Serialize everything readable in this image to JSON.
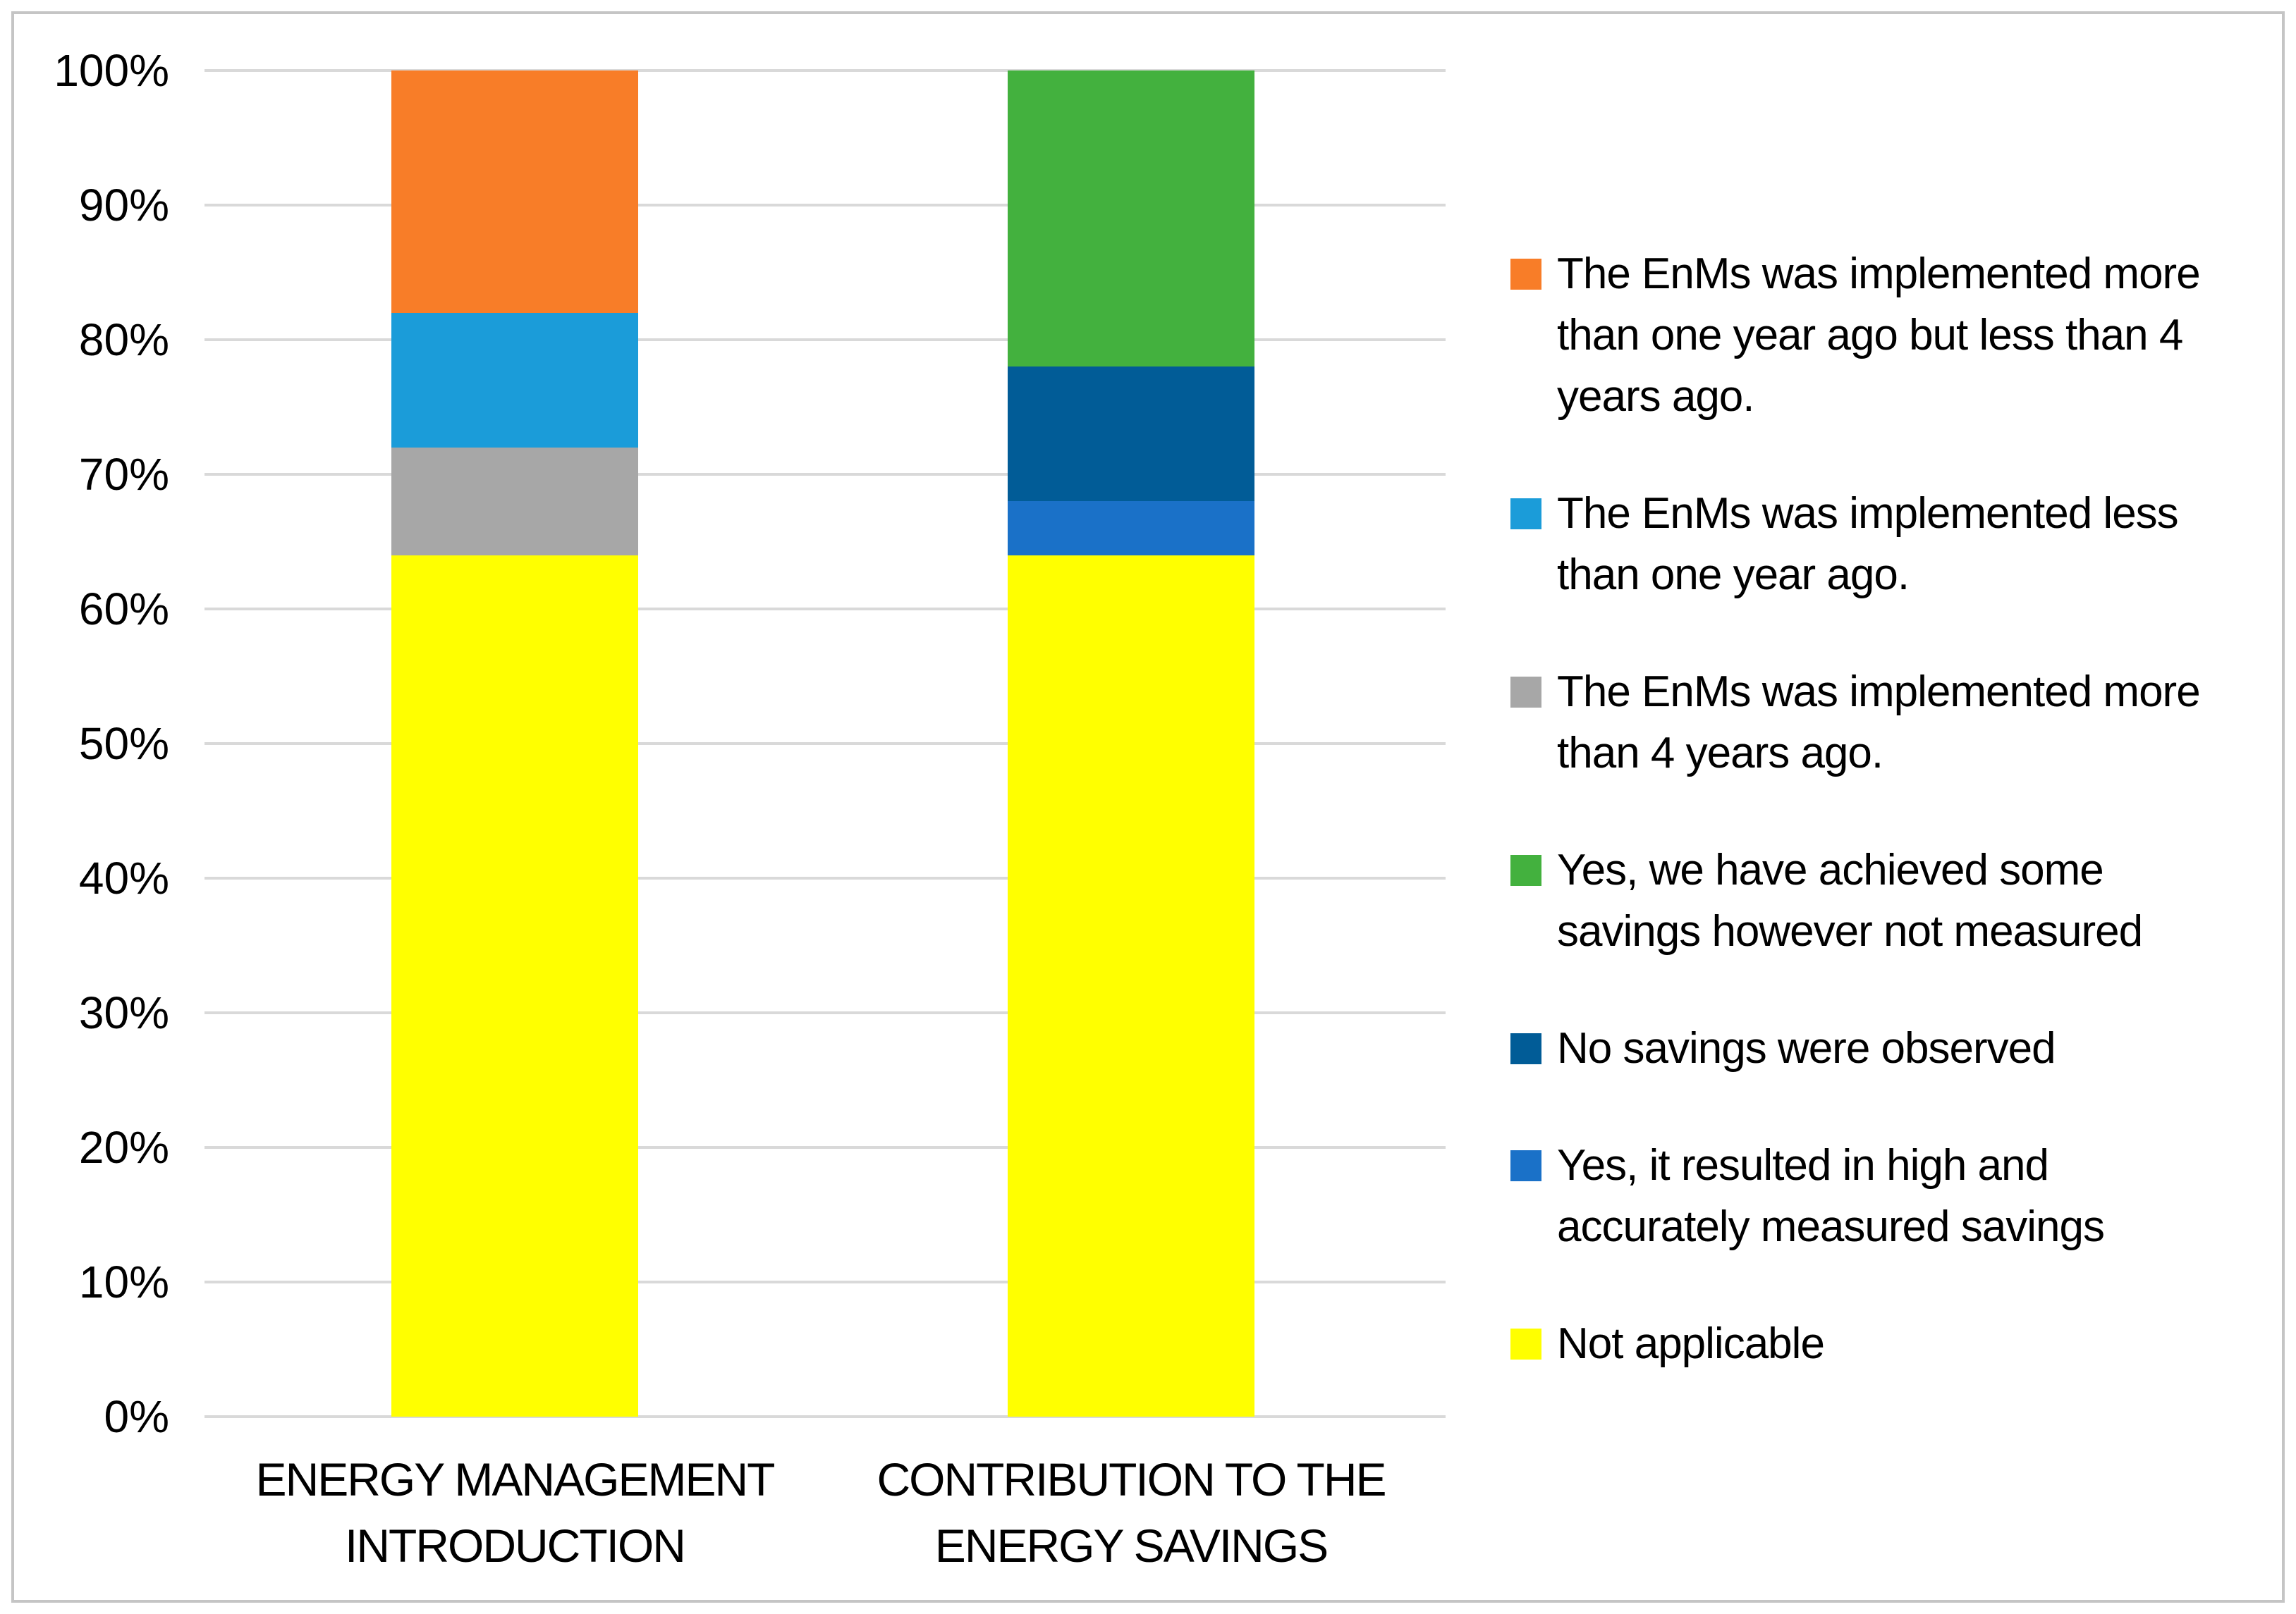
{
  "figure": {
    "background": "#FFFFFF",
    "border_color": "#C5C5C5"
  },
  "chart_data": {
    "type": "bar",
    "subtype": "100%-stacked-column",
    "title": "",
    "xlabel": "",
    "ylabel": "",
    "ylim": [
      0,
      100
    ],
    "grid": "horizontal",
    "grid_color": "#D9D9D9",
    "legend_position": "right",
    "stack_order": "reverse of series list (Not applicable at bottom)",
    "y_ticks": [
      "0%",
      "10%",
      "20%",
      "30%",
      "40%",
      "50%",
      "60%",
      "70%",
      "80%",
      "90%",
      "100%"
    ],
    "categories": [
      "ENERGY MANAGEMENT\nINTRODUCTION",
      "CONTRIBUTION TO THE\nENERGY SAVINGS"
    ],
    "series": [
      {
        "name": "The EnMs was implemented more\nthan one year ago but less than 4\nyears ago.",
        "color": "#F87D28",
        "values": [
          18,
          0
        ]
      },
      {
        "name": "The EnMs was implemented less\nthan one year ago.",
        "color": "#1B9CD9",
        "values": [
          10,
          0
        ]
      },
      {
        "name": "The EnMs was implemented more\nthan 4 years ago.",
        "color": "#A7A7A7",
        "values": [
          8,
          0
        ]
      },
      {
        "name": "Yes, we have achieved some\nsavings however not measured",
        "color": "#43B13E",
        "values": [
          0,
          22
        ]
      },
      {
        "name": "No savings were observed",
        "color": "#015C97",
        "values": [
          0,
          10
        ]
      },
      {
        "name": "Yes, it resulted in high and\naccurately measured savings",
        "color": "#1A71C8",
        "values": [
          0,
          4
        ]
      },
      {
        "name": "Not applicable",
        "color": "#FFFF00",
        "values": [
          64,
          64
        ]
      }
    ]
  }
}
